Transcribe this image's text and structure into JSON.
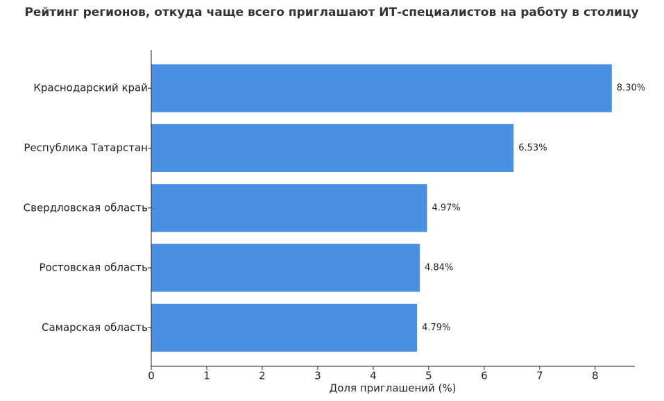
{
  "chart_data": {
    "type": "barh",
    "title": "Рейтинг регионов, откуда чаще всего приглашают ИТ-специалистов на работу в столицу",
    "xlabel": "Доля приглашений (%)",
    "categories": [
      "Краснодарский край",
      "Республика Татарстан",
      "Свердловская область",
      "Ростовская область",
      "Самарская область"
    ],
    "values": [
      8.3,
      6.53,
      4.97,
      4.84,
      4.79
    ],
    "value_labels": [
      "8.30%",
      "6.53%",
      "4.97%",
      "4.84%",
      "4.79%"
    ],
    "color": "#4a90e2",
    "xlim": [
      0,
      8.715
    ],
    "xticks": [
      0,
      1,
      2,
      3,
      4,
      5,
      6,
      7,
      8
    ]
  }
}
